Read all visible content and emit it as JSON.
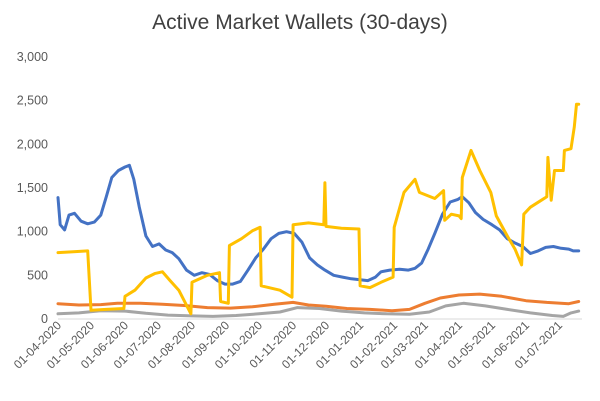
{
  "chart_data": {
    "type": "line",
    "title": "Active Market Wallets (30-days)",
    "xlabel": "",
    "ylabel": "",
    "ylim": [
      0,
      3000
    ],
    "yticks": [
      0,
      500,
      1000,
      1500,
      2000,
      2500,
      3000
    ],
    "ytick_labels": [
      "0",
      "500",
      "1,000",
      "1,500",
      "2,000",
      "2,500",
      "3,000"
    ],
    "xtick_labels": [
      "01-04-2020",
      "01-05-2020",
      "01-06-2020",
      "01-07-2020",
      "01-08-2020",
      "01-09-2020",
      "01-10-2020",
      "01-11-2020",
      "01-12-2020",
      "01-01-2021",
      "01-02-2021",
      "01-03-2021",
      "01-04-2021",
      "01-05-2021",
      "01-06-2021",
      "01-07-2021"
    ],
    "grid": false,
    "legend": "none",
    "series": [
      {
        "color": "#4472C4",
        "points": [
          [
            "2020-04-01",
            1390
          ],
          [
            "2020-04-03",
            1080
          ],
          [
            "2020-04-07",
            1020
          ],
          [
            "2020-04-11",
            1190
          ],
          [
            "2020-04-16",
            1210
          ],
          [
            "2020-04-22",
            1120
          ],
          [
            "2020-04-28",
            1090
          ],
          [
            "2020-05-04",
            1110
          ],
          [
            "2020-05-10",
            1190
          ],
          [
            "2020-05-15",
            1400
          ],
          [
            "2020-05-20",
            1620
          ],
          [
            "2020-05-26",
            1700
          ],
          [
            "2020-06-01",
            1740
          ],
          [
            "2020-06-05",
            1760
          ],
          [
            "2020-06-09",
            1600
          ],
          [
            "2020-06-14",
            1280
          ],
          [
            "2020-06-20",
            950
          ],
          [
            "2020-06-26",
            830
          ],
          [
            "2020-07-02",
            860
          ],
          [
            "2020-07-08",
            790
          ],
          [
            "2020-07-14",
            760
          ],
          [
            "2020-07-20",
            690
          ],
          [
            "2020-07-27",
            560
          ],
          [
            "2020-08-03",
            500
          ],
          [
            "2020-08-10",
            530
          ],
          [
            "2020-08-17",
            510
          ],
          [
            "2020-08-24",
            440
          ],
          [
            "2020-08-31",
            400
          ],
          [
            "2020-09-07",
            400
          ],
          [
            "2020-09-14",
            430
          ],
          [
            "2020-09-21",
            560
          ],
          [
            "2020-09-28",
            700
          ],
          [
            "2020-10-05",
            800
          ],
          [
            "2020-10-12",
            920
          ],
          [
            "2020-10-19",
            980
          ],
          [
            "2020-10-26",
            1000
          ],
          [
            "2020-11-02",
            980
          ],
          [
            "2020-11-09",
            880
          ],
          [
            "2020-11-16",
            700
          ],
          [
            "2020-11-23",
            620
          ],
          [
            "2020-11-30",
            560
          ],
          [
            "2020-12-08",
            500
          ],
          [
            "2020-12-16",
            480
          ],
          [
            "2020-12-24",
            460
          ],
          [
            "2021-01-01",
            450
          ],
          [
            "2021-01-08",
            440
          ],
          [
            "2021-01-15",
            480
          ],
          [
            "2021-01-20",
            540
          ],
          [
            "2021-01-28",
            560
          ],
          [
            "2021-02-06",
            570
          ],
          [
            "2021-02-14",
            560
          ],
          [
            "2021-02-20",
            580
          ],
          [
            "2021-02-26",
            640
          ],
          [
            "2021-03-04",
            800
          ],
          [
            "2021-03-10",
            980
          ],
          [
            "2021-03-17",
            1200
          ],
          [
            "2021-03-24",
            1340
          ],
          [
            "2021-03-31",
            1370
          ],
          [
            "2021-04-04",
            1400
          ],
          [
            "2021-04-10",
            1330
          ],
          [
            "2021-04-16",
            1220
          ],
          [
            "2021-04-23",
            1140
          ],
          [
            "2021-05-01",
            1080
          ],
          [
            "2021-05-08",
            1020
          ],
          [
            "2021-05-15",
            920
          ],
          [
            "2021-05-22",
            870
          ],
          [
            "2021-05-29",
            830
          ],
          [
            "2021-06-05",
            750
          ],
          [
            "2021-06-12",
            780
          ],
          [
            "2021-06-19",
            820
          ],
          [
            "2021-06-26",
            830
          ],
          [
            "2021-07-03",
            810
          ],
          [
            "2021-07-10",
            800
          ],
          [
            "2021-07-14",
            780
          ],
          [
            "2021-07-19",
            780
          ]
        ]
      },
      {
        "color": "#ED7D31",
        "points": [
          [
            "2020-04-01",
            175
          ],
          [
            "2020-04-20",
            160
          ],
          [
            "2020-05-10",
            165
          ],
          [
            "2020-05-25",
            180
          ],
          [
            "2020-06-15",
            180
          ],
          [
            "2020-07-05",
            170
          ],
          [
            "2020-07-25",
            155
          ],
          [
            "2020-08-15",
            130
          ],
          [
            "2020-09-05",
            125
          ],
          [
            "2020-09-25",
            140
          ],
          [
            "2020-10-15",
            170
          ],
          [
            "2020-11-01",
            190
          ],
          [
            "2020-11-15",
            160
          ],
          [
            "2020-12-01",
            145
          ],
          [
            "2020-12-20",
            120
          ],
          [
            "2021-01-10",
            110
          ],
          [
            "2021-01-30",
            95
          ],
          [
            "2021-02-15",
            110
          ],
          [
            "2021-03-01",
            180
          ],
          [
            "2021-03-15",
            240
          ],
          [
            "2021-04-01",
            275
          ],
          [
            "2021-04-20",
            285
          ],
          [
            "2021-05-10",
            260
          ],
          [
            "2021-06-01",
            210
          ],
          [
            "2021-06-20",
            190
          ],
          [
            "2021-07-10",
            175
          ],
          [
            "2021-07-19",
            200
          ]
        ]
      },
      {
        "color": "#A5A5A5",
        "points": [
          [
            "2020-04-01",
            60
          ],
          [
            "2020-04-20",
            70
          ],
          [
            "2020-05-10",
            95
          ],
          [
            "2020-06-01",
            90
          ],
          [
            "2020-06-20",
            65
          ],
          [
            "2020-07-10",
            45
          ],
          [
            "2020-08-01",
            35
          ],
          [
            "2020-08-20",
            30
          ],
          [
            "2020-09-10",
            40
          ],
          [
            "2020-10-01",
            60
          ],
          [
            "2020-10-20",
            80
          ],
          [
            "2020-11-05",
            130
          ],
          [
            "2020-11-25",
            120
          ],
          [
            "2020-12-15",
            90
          ],
          [
            "2021-01-05",
            70
          ],
          [
            "2021-01-25",
            60
          ],
          [
            "2021-02-15",
            55
          ],
          [
            "2021-03-05",
            80
          ],
          [
            "2021-03-20",
            150
          ],
          [
            "2021-04-05",
            180
          ],
          [
            "2021-04-25",
            150
          ],
          [
            "2021-05-15",
            110
          ],
          [
            "2021-06-05",
            70
          ],
          [
            "2021-06-25",
            40
          ],
          [
            "2021-07-05",
            30
          ],
          [
            "2021-07-12",
            70
          ],
          [
            "2021-07-19",
            90
          ]
        ]
      },
      {
        "color": "#FFC000",
        "points": [
          [
            "2020-04-01",
            760
          ],
          [
            "2020-04-15",
            770
          ],
          [
            "2020-04-28",
            780
          ],
          [
            "2020-05-01",
            100
          ],
          [
            "2020-05-15",
            110
          ],
          [
            "2020-05-31",
            120
          ],
          [
            "2020-06-01",
            260
          ],
          [
            "2020-06-10",
            330
          ],
          [
            "2020-06-20",
            470
          ],
          [
            "2020-06-28",
            520
          ],
          [
            "2020-07-05",
            540
          ],
          [
            "2020-07-12",
            440
          ],
          [
            "2020-07-20",
            330
          ],
          [
            "2020-07-31",
            60
          ],
          [
            "2020-08-01",
            420
          ],
          [
            "2020-08-15",
            500
          ],
          [
            "2020-08-26",
            530
          ],
          [
            "2020-08-27",
            200
          ],
          [
            "2020-09-03",
            180
          ],
          [
            "2020-09-04",
            840
          ],
          [
            "2020-09-15",
            920
          ],
          [
            "2020-09-25",
            1010
          ],
          [
            "2020-10-02",
            1050
          ],
          [
            "2020-10-03",
            380
          ],
          [
            "2020-10-20",
            330
          ],
          [
            "2020-10-31",
            250
          ],
          [
            "2020-11-01",
            1080
          ],
          [
            "2020-11-15",
            1100
          ],
          [
            "2020-11-29",
            1080
          ],
          [
            "2020-11-30",
            1560
          ],
          [
            "2020-12-01",
            1060
          ],
          [
            "2020-12-15",
            1040
          ],
          [
            "2020-12-31",
            1030
          ],
          [
            "2021-01-01",
            380
          ],
          [
            "2021-01-10",
            360
          ],
          [
            "2021-01-20",
            420
          ],
          [
            "2021-01-31",
            480
          ],
          [
            "2021-02-01",
            1050
          ],
          [
            "2021-02-10",
            1450
          ],
          [
            "2021-02-20",
            1600
          ],
          [
            "2021-02-24",
            1450
          ],
          [
            "2021-03-10",
            1380
          ],
          [
            "2021-03-18",
            1470
          ],
          [
            "2021-03-19",
            1130
          ],
          [
            "2021-03-25",
            1200
          ],
          [
            "2021-04-01",
            1180
          ],
          [
            "2021-04-03",
            1150
          ],
          [
            "2021-04-04",
            1620
          ],
          [
            "2021-04-12",
            1930
          ],
          [
            "2021-04-20",
            1700
          ],
          [
            "2021-04-30",
            1450
          ],
          [
            "2021-05-05",
            1180
          ],
          [
            "2021-05-15",
            950
          ],
          [
            "2021-05-22",
            800
          ],
          [
            "2021-05-28",
            620
          ],
          [
            "2021-05-30",
            1200
          ],
          [
            "2021-06-05",
            1280
          ],
          [
            "2021-06-15",
            1360
          ],
          [
            "2021-06-20",
            1400
          ],
          [
            "2021-06-21",
            1850
          ],
          [
            "2021-06-24",
            1360
          ],
          [
            "2021-06-27",
            1700
          ],
          [
            "2021-07-05",
            1700
          ],
          [
            "2021-07-06",
            1930
          ],
          [
            "2021-07-12",
            1950
          ],
          [
            "2021-07-15",
            2200
          ],
          [
            "2021-07-17",
            2460
          ],
          [
            "2021-07-19",
            2460
          ]
        ]
      }
    ]
  }
}
